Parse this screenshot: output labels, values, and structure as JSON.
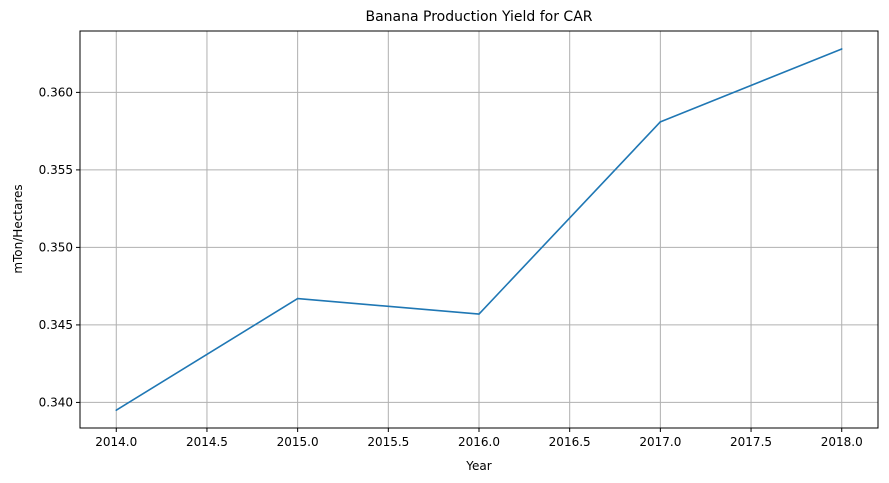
{
  "chart_data": {
    "type": "line",
    "title": "Banana Production Yield for CAR",
    "xlabel": "Year",
    "ylabel": "mTon/Hectares",
    "x": [
      2014,
      2015,
      2016,
      2017,
      2018
    ],
    "series": [
      {
        "values": [
          0.3395,
          0.3467,
          0.3457,
          0.3581,
          0.3628
        ],
        "color": "#1f77b4"
      }
    ],
    "xlim": [
      2013.8,
      2018.2
    ],
    "ylim": [
      0.33835,
      0.36396
    ],
    "xticks": [
      2014.0,
      2014.5,
      2015.0,
      2015.5,
      2016.0,
      2016.5,
      2017.0,
      2017.5,
      2018.0
    ],
    "xtick_labels": [
      "2014.0",
      "2014.5",
      "2015.0",
      "2015.5",
      "2016.0",
      "2016.5",
      "2017.0",
      "2017.5",
      "2018.0"
    ],
    "yticks": [
      0.34,
      0.345,
      0.35,
      0.355,
      0.36
    ],
    "ytick_labels": [
      "0.340",
      "0.345",
      "0.350",
      "0.355",
      "0.360"
    ],
    "grid": true
  }
}
